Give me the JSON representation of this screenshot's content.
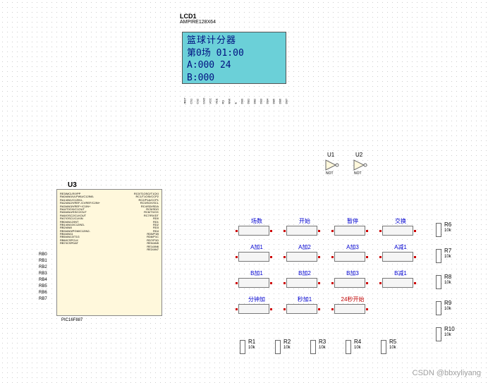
{
  "lcd": {
    "ref": "LCD1",
    "model": "AMPIRE128X64",
    "lines": [
      "篮球计分器",
      "第0场 01:00",
      "A:000   24",
      "B:000"
    ],
    "pins": [
      "/RST",
      "CS1",
      "CS2",
      "GND",
      "VCC",
      "VEE",
      "RS",
      "R/W",
      "E",
      "DB0",
      "DB1",
      "DB2",
      "DB3",
      "DB4",
      "DB5",
      "DB6",
      "DB7"
    ]
  },
  "chip": {
    "ref": "U3",
    "model": "PIC16F887",
    "left_pins": [
      "RE3/MCLR/VPP",
      "RA0/AN0/ULPWU/C12IN0-",
      "RA1/AN1/C12IN1-",
      "RA2/AN2/VREF-/CVREF/C2IN+",
      "RA3/AN3/VREF+/C1IN+",
      "RA4/T0CKI/C1OUT",
      "RA5/AN4/SS/C2OUT",
      "RA6/OSC2/CLKOUT",
      "RA7/OSC1/CLKIN",
      "",
      "RB0/AN12/INT",
      "RB1/AN10/C12IN3-",
      "RB2/AN8",
      "RB3/AN9/PGM/C12IN2-",
      "RB4/AN11",
      "RB5/AN13/T1G",
      "RB6/ICSPCLK",
      "RB7/ICSPDAT"
    ],
    "right_pins": [
      "RC0/T1OSO/T1CKI",
      "RC1/T1OSI/CCP2",
      "RC2/P1A/CCP1",
      "RC3/SCK/SCL",
      "RC4/SDI/SDA",
      "RC5/SDO",
      "RC6/TX/CK",
      "RC7/RX/DT",
      "",
      "RD0",
      "RD1",
      "RD2",
      "RD3",
      "RD4",
      "RD5/P1B",
      "RD6/P1C",
      "RD7/P1D",
      "",
      "RE0/AN5",
      "RE1/AN6",
      "RE2/AN7"
    ],
    "rb_ext": [
      "RB0",
      "RB1",
      "RB2",
      "RB3",
      "RB4",
      "RB5",
      "RB6",
      "RB7"
    ]
  },
  "inverters": [
    {
      "ref": "U1",
      "type": "NOT"
    },
    {
      "ref": "U2",
      "type": "NOT"
    }
  ],
  "buttons": {
    "rows": [
      [
        {
          "label": "场数"
        },
        {
          "label": "开始"
        },
        {
          "label": "暂停"
        },
        {
          "label": "交换"
        }
      ],
      [
        {
          "label": "A加1"
        },
        {
          "label": "A加2"
        },
        {
          "label": "A加3"
        },
        {
          "label": "A减1"
        }
      ],
      [
        {
          "label": "B加1"
        },
        {
          "label": "B加2"
        },
        {
          "label": "B加3"
        },
        {
          "label": "B减1"
        }
      ],
      [
        {
          "label": "分钟加"
        },
        {
          "label": "秒加1"
        },
        {
          "label": "24秒开始",
          "red": true
        }
      ]
    ]
  },
  "resistors_right": [
    {
      "ref": "R6",
      "val": "10k"
    },
    {
      "ref": "R7",
      "val": "10k"
    },
    {
      "ref": "R8",
      "val": "10k"
    },
    {
      "ref": "R9",
      "val": "10k"
    },
    {
      "ref": "R10",
      "val": "10k"
    }
  ],
  "resistors_bottom": [
    {
      "ref": "R1",
      "val": "10k"
    },
    {
      "ref": "R2",
      "val": "10k"
    },
    {
      "ref": "R3",
      "val": "10k"
    },
    {
      "ref": "R4",
      "val": "10k"
    },
    {
      "ref": "R5",
      "val": "10k"
    }
  ],
  "watermark": "CSDN @bbxyliyang",
  "colors": {
    "lcd_bg": "#6bd0d8",
    "lcd_text": "#001080",
    "chip_bg": "#fff8dc",
    "wire": "#008800",
    "btn_label": "#0000d0",
    "btn_label_red": "#c00000"
  }
}
